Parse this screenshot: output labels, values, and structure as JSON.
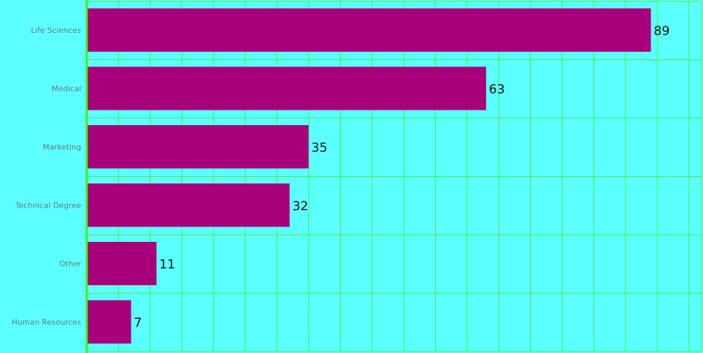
{
  "chart_data": {
    "type": "bar",
    "orientation": "horizontal",
    "categories": [
      "Life Sciences",
      "Medical",
      "Marketing",
      "Technical Degree",
      "Other",
      "Human Resources"
    ],
    "values": [
      89,
      63,
      35,
      32,
      11,
      7
    ],
    "title": "",
    "xlabel": "",
    "ylabel": "",
    "xlim": [
      0,
      97
    ],
    "grid": true,
    "show_value_labels": true
  },
  "colors": {
    "background": "#5CFFFF",
    "bar": "#A8007A",
    "grid": "#4CEE3A",
    "axis": "#44EE11"
  }
}
